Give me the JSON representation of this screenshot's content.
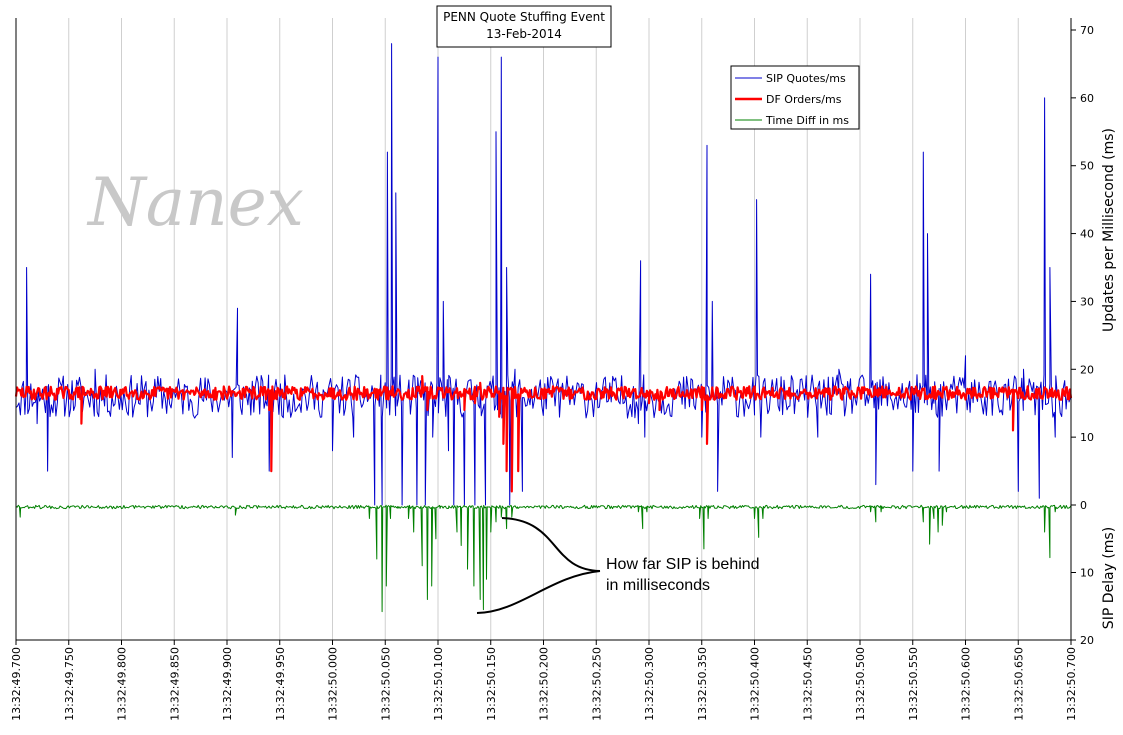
{
  "chart_data": {
    "type": "line",
    "title": "PENN Quote Stuffing Event",
    "subtitle": "13-Feb-2014",
    "watermark": "Nanex",
    "x_tick_labels": [
      "13:32:49.700",
      "13:32:49.750",
      "13:32:49.800",
      "13:32:49.850",
      "13:32:49.900",
      "13:32:49.950",
      "13:32:50.000",
      "13:32:50.050",
      "13:32:50.100",
      "13:32:50.150",
      "13:32:50.200",
      "13:32:50.250",
      "13:32:50.300",
      "13:32:50.350",
      "13:32:50.400",
      "13:32:50.450",
      "13:32:50.500",
      "13:32:50.550",
      "13:32:50.600",
      "13:32:50.650",
      "13:32:50.700"
    ],
    "xlim_ms": [
      0,
      1000
    ],
    "y_upper": {
      "label": "Updates per Millisecond (ms)",
      "range": [
        0,
        70
      ],
      "ticks": [
        0,
        10,
        20,
        30,
        40,
        50,
        60,
        70
      ]
    },
    "y_lower": {
      "label": "SIP Delay (ms)",
      "range": [
        0,
        20
      ],
      "ticks": [
        10,
        20
      ],
      "inverted": true
    },
    "grid": true,
    "legend_position": "top-right",
    "series": [
      {
        "name": "SIP Quotes/ms",
        "color": "#0000cc",
        "baseline": 16,
        "noise": 3.2,
        "spikes": [
          [
            10,
            35
          ],
          [
            20,
            12
          ],
          [
            30,
            5
          ],
          [
            75,
            20
          ],
          [
            210,
            29
          ],
          [
            205,
            7
          ],
          [
            240,
            5
          ],
          [
            300,
            8
          ],
          [
            320,
            10
          ],
          [
            340,
            0
          ],
          [
            347,
            0
          ],
          [
            352,
            52
          ],
          [
            356,
            68
          ],
          [
            360,
            46
          ],
          [
            366,
            0
          ],
          [
            380,
            0
          ],
          [
            388,
            0
          ],
          [
            395,
            10
          ],
          [
            400,
            66
          ],
          [
            405,
            30
          ],
          [
            410,
            8
          ],
          [
            415,
            0
          ],
          [
            425,
            0
          ],
          [
            435,
            0
          ],
          [
            440,
            18
          ],
          [
            445,
            0
          ],
          [
            455,
            55
          ],
          [
            460,
            66
          ],
          [
            465,
            35
          ],
          [
            468,
            0
          ],
          [
            473,
            20
          ],
          [
            480,
            2
          ],
          [
            590,
            12
          ],
          [
            592,
            36
          ],
          [
            596,
            10
          ],
          [
            650,
            10
          ],
          [
            655,
            53
          ],
          [
            660,
            30
          ],
          [
            665,
            2
          ],
          [
            700,
            15
          ],
          [
            702,
            45
          ],
          [
            706,
            10
          ],
          [
            760,
            10
          ],
          [
            780,
            20
          ],
          [
            810,
            34
          ],
          [
            815,
            3
          ],
          [
            850,
            5
          ],
          [
            860,
            52
          ],
          [
            864,
            40
          ],
          [
            870,
            15
          ],
          [
            875,
            5
          ],
          [
            900,
            22
          ],
          [
            950,
            2
          ],
          [
            955,
            20
          ],
          [
            970,
            1
          ],
          [
            975,
            60
          ],
          [
            980,
            35
          ],
          [
            985,
            10
          ]
        ]
      },
      {
        "name": "DF Orders/ms",
        "color": "#ff0000",
        "baseline": 16.5,
        "noise": 1.0,
        "spikes": [
          [
            62,
            12
          ],
          [
            240,
            14
          ],
          [
            242,
            5
          ],
          [
            385,
            19
          ],
          [
            390,
            14
          ],
          [
            425,
            14
          ],
          [
            435,
            15
          ],
          [
            440,
            18
          ],
          [
            450,
            17
          ],
          [
            458,
            13
          ],
          [
            462,
            9
          ],
          [
            465,
            5
          ],
          [
            470,
            2
          ],
          [
            476,
            5
          ],
          [
            600,
            15
          ],
          [
            610,
            14
          ],
          [
            650,
            14
          ],
          [
            655,
            9
          ],
          [
            945,
            11
          ]
        ]
      },
      {
        "name": "Time Diff in ms",
        "color": "#008000",
        "baseline": 0.3,
        "noise": 0.25,
        "dips": [
          [
            4,
            1.8
          ],
          [
            208,
            1.5
          ],
          [
            330,
            0.5
          ],
          [
            335,
            2
          ],
          [
            342,
            8
          ],
          [
            347,
            15.8
          ],
          [
            351,
            12
          ],
          [
            355,
            2
          ],
          [
            362,
            0.5
          ],
          [
            372,
            2
          ],
          [
            377,
            4
          ],
          [
            385,
            9
          ],
          [
            390,
            14
          ],
          [
            394,
            12
          ],
          [
            398,
            5
          ],
          [
            402,
            0.5
          ],
          [
            410,
            0.5
          ],
          [
            418,
            4
          ],
          [
            422,
            6
          ],
          [
            428,
            9.5
          ],
          [
            434,
            12
          ],
          [
            440,
            14
          ],
          [
            443,
            15.5
          ],
          [
            446,
            11
          ],
          [
            450,
            4
          ],
          [
            455,
            2.5
          ],
          [
            460,
            1.8
          ],
          [
            465,
            3.5
          ],
          [
            470,
            1.8
          ],
          [
            475,
            0.5
          ],
          [
            590,
            1
          ],
          [
            594,
            3.5
          ],
          [
            598,
            1
          ],
          [
            648,
            2
          ],
          [
            652,
            6.5
          ],
          [
            656,
            2
          ],
          [
            700,
            2
          ],
          [
            704,
            4.8
          ],
          [
            708,
            2
          ],
          [
            810,
            1
          ],
          [
            815,
            2.5
          ],
          [
            820,
            1
          ],
          [
            860,
            2.5
          ],
          [
            866,
            5.8
          ],
          [
            870,
            2
          ],
          [
            874,
            4
          ],
          [
            878,
            3
          ],
          [
            882,
            1
          ],
          [
            975,
            4
          ],
          [
            980,
            7.8
          ],
          [
            985,
            1
          ]
        ]
      }
    ],
    "annotation": {
      "lines": [
        "How far SIP is behind",
        "in milliseconds"
      ]
    }
  }
}
